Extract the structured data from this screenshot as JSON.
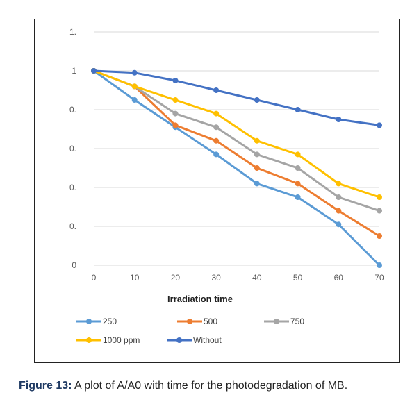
{
  "caption": {
    "label": "Figure 13:",
    "text": " A plot of A/A0 with time for the photodegradation of MB."
  },
  "chart_data": {
    "type": "line",
    "title": "",
    "xlabel": "Irradiation time",
    "ylabel": "",
    "x": [
      0,
      10,
      20,
      30,
      40,
      50,
      60,
      70
    ],
    "x_tick_labels": [
      "0",
      "10",
      "20",
      "30",
      "40",
      "50",
      "60",
      "70"
    ],
    "y_tick_labels": [
      "0",
      "0.",
      "0.",
      "0.",
      "0.",
      "1",
      "1."
    ],
    "ylim": [
      0,
      1.2
    ],
    "grid": true,
    "legend_position": "bottom",
    "series": [
      {
        "name": "250",
        "color": "#5B9BD5",
        "values": [
          1.0,
          0.85,
          0.71,
          0.57,
          0.42,
          0.35,
          0.21,
          0.0
        ]
      },
      {
        "name": "500",
        "color": "#ED7D31",
        "values": [
          1.0,
          0.92,
          0.72,
          0.64,
          0.5,
          0.42,
          0.28,
          0.15
        ]
      },
      {
        "name": "750",
        "color": "#A5A5A5",
        "values": [
          1.0,
          0.92,
          0.78,
          0.71,
          0.57,
          0.5,
          0.35,
          0.28
        ]
      },
      {
        "name": "1000 ppm",
        "color": "#FFC000",
        "values": [
          1.0,
          0.92,
          0.85,
          0.78,
          0.64,
          0.57,
          0.42,
          0.35
        ]
      },
      {
        "name": "Without",
        "color": "#4472C4",
        "values": [
          1.0,
          0.99,
          0.95,
          0.9,
          0.85,
          0.8,
          0.75,
          0.72
        ]
      }
    ]
  }
}
